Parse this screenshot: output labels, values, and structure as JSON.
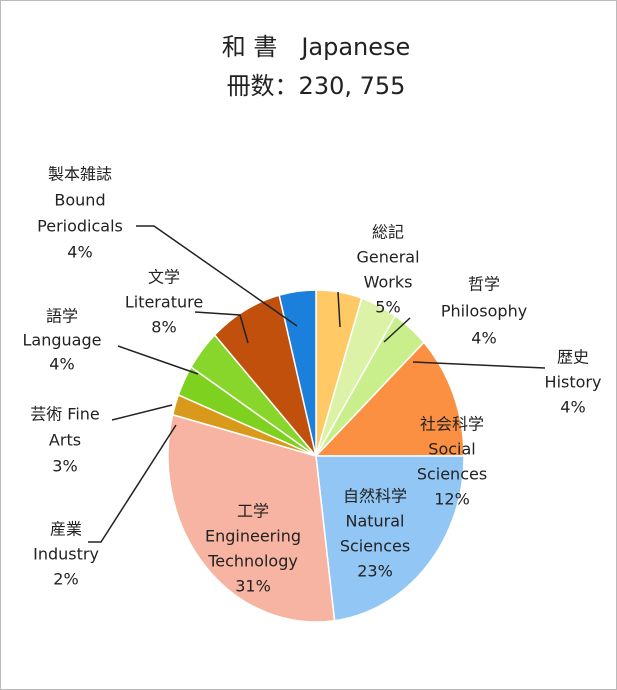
{
  "chart_data": {
    "type": "pie",
    "title": "和 書　Japanese",
    "subtitle": "冊数：230, 755",
    "categories": [
      [
        "総記",
        "General",
        "Works"
      ],
      [
        "哲学",
        "Philosophy"
      ],
      [
        "歴史",
        "History"
      ],
      [
        "社会科学",
        "Social",
        "Sciences"
      ],
      [
        "自然科学",
        "Natural",
        "Sciences"
      ],
      [
        "工学",
        "Engineering",
        "Technology"
      ],
      [
        "産業",
        "Industry"
      ],
      [
        "芸術 Fine",
        "Arts"
      ],
      [
        "語学",
        "Language"
      ],
      [
        "文学",
        "Literature"
      ],
      [
        "製本雑誌",
        "Bound",
        "Periodicals"
      ]
    ],
    "values": [
      5,
      4,
      4,
      12,
      23,
      31,
      2,
      3,
      4,
      8,
      4
    ],
    "value_labels": [
      "5%",
      "4%",
      "4%",
      "12%",
      "23%",
      "31%",
      "2%",
      "3%",
      "4%",
      "8%",
      "4%"
    ],
    "colors": [
      "#ffc966",
      "#dcf2a6",
      "#c9ef8c",
      "#fb9042",
      "#92c6f5",
      "#f8b4a2",
      "#d99a1c",
      "#7fd11f",
      "#88d52c",
      "#c0500c",
      "#1a80dc"
    ]
  }
}
